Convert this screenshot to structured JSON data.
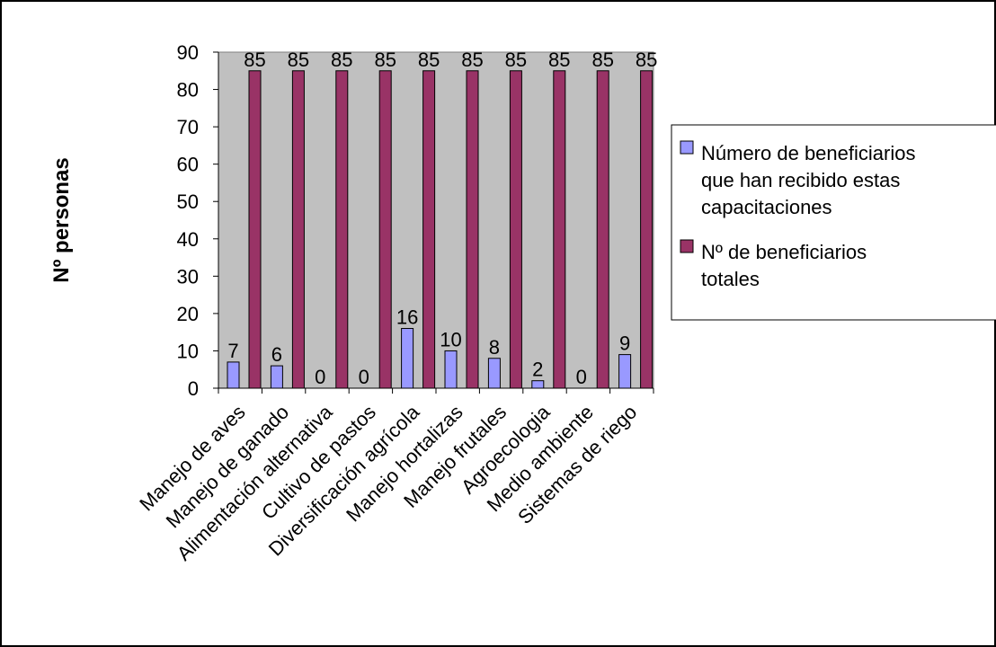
{
  "chart_data": {
    "type": "bar",
    "title": "",
    "xlabel": "",
    "ylabel": "Nº personas",
    "ylim": [
      0,
      90
    ],
    "yticks": [
      0,
      10,
      20,
      30,
      40,
      50,
      60,
      70,
      80,
      90
    ],
    "grid": false,
    "plot_background": "#c0c0c0",
    "legend_position": "right",
    "categories": [
      "Manejo de aves",
      "Manejo de ganado",
      "Alimentación alternativa",
      "Cultivo de pastos",
      "Diversificación agrícola",
      "Manejo hortalizas",
      "Manejo frutales",
      "Agroecologia",
      "Medio ambiente",
      "Sistemas de riego"
    ],
    "series": [
      {
        "name": "Número de beneficiarios que han recibido estas capacitaciones",
        "legend_lines": [
          "Número de beneficiarios",
          "que han recibido estas",
          "capacitaciones"
        ],
        "color": "#9999ff",
        "values": [
          7,
          6,
          0,
          0,
          16,
          10,
          8,
          2,
          0,
          9
        ]
      },
      {
        "name": "Nº de beneficiarios totales",
        "legend_lines": [
          "Nº de beneficiarios",
          "totales"
        ],
        "color": "#993366",
        "values": [
          85,
          85,
          85,
          85,
          85,
          85,
          85,
          85,
          85,
          85
        ]
      }
    ]
  }
}
